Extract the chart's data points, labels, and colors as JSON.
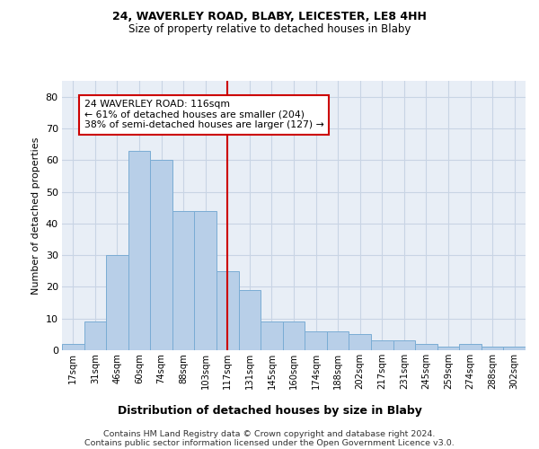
{
  "title1": "24, WAVERLEY ROAD, BLABY, LEICESTER, LE8 4HH",
  "title2": "Size of property relative to detached houses in Blaby",
  "xlabel": "Distribution of detached houses by size in Blaby",
  "ylabel": "Number of detached properties",
  "categories": [
    "17sqm",
    "31sqm",
    "46sqm",
    "60sqm",
    "74sqm",
    "88sqm",
    "103sqm",
    "117sqm",
    "131sqm",
    "145sqm",
    "160sqm",
    "174sqm",
    "188sqm",
    "202sqm",
    "217sqm",
    "231sqm",
    "245sqm",
    "259sqm",
    "274sqm",
    "288sqm",
    "302sqm"
  ],
  "values": [
    2,
    9,
    30,
    63,
    60,
    44,
    44,
    25,
    19,
    9,
    9,
    6,
    6,
    5,
    3,
    3,
    2,
    1,
    2,
    1,
    1
  ],
  "bar_color": "#b8cfe8",
  "bar_edge_color": "#7aacd4",
  "property_line_index": 7,
  "property_line_color": "#cc0000",
  "annotation_line1": "24 WAVERLEY ROAD: 116sqm",
  "annotation_line2": "← 61% of detached houses are smaller (204)",
  "annotation_line3": "38% of semi-detached houses are larger (127) →",
  "annotation_box_color": "#cc0000",
  "ylim": [
    0,
    85
  ],
  "yticks": [
    0,
    10,
    20,
    30,
    40,
    50,
    60,
    70,
    80
  ],
  "grid_color": "#c8d4e4",
  "bg_color": "#e8eef6",
  "footer_line1": "Contains HM Land Registry data © Crown copyright and database right 2024.",
  "footer_line2": "Contains public sector information licensed under the Open Government Licence v3.0."
}
